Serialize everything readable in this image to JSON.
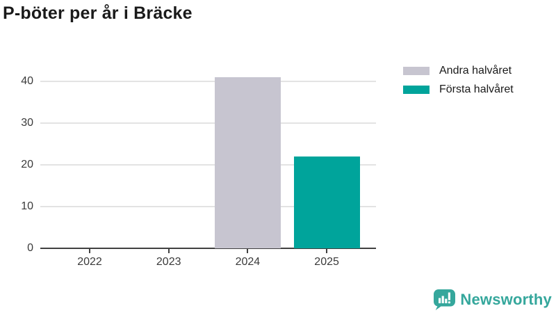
{
  "title": "P-böter per år i Bräcke",
  "branding": {
    "logo_text": "Newsworthy",
    "logo_color": "#35a79c"
  },
  "chart_data": {
    "type": "bar",
    "title": "P-böter per år i Bräcke",
    "categories": [
      "2022",
      "2023",
      "2024",
      "2025"
    ],
    "series": [
      {
        "name": "Andra halvåret",
        "color": "#c7c5d0",
        "values": [
          null,
          null,
          41,
          null
        ]
      },
      {
        "name": "Första halvåret",
        "color": "#00a49b",
        "values": [
          null,
          null,
          null,
          22
        ]
      }
    ],
    "xlabel": "",
    "ylabel": "",
    "yticks": [
      0,
      10,
      20,
      30,
      40
    ],
    "ylim": [
      0,
      41
    ],
    "grid": true,
    "legend_position": "top-right",
    "bar_orientation": "vertical"
  }
}
